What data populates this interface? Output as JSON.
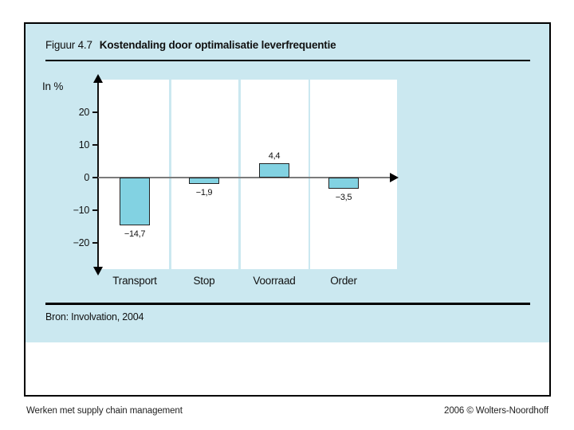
{
  "figure": {
    "label": "Figuur 4.7",
    "title": "Kostendaling door optimalisatie leverfrequentie",
    "source": "Bron: Involvation, 2004"
  },
  "chart_data": {
    "type": "bar",
    "title": "Kostendaling door optimalisatie leverfrequentie",
    "categories": [
      "Transport",
      "Stop",
      "Voorraad",
      "Order"
    ],
    "values": [
      -14.7,
      -1.9,
      4.4,
      -3.5
    ],
    "value_labels": [
      "−14,7",
      "−1,9",
      "4,4",
      "−3,5"
    ],
    "xlabel": "",
    "ylabel": "In %",
    "y_ticks": [
      20,
      10,
      0,
      -10,
      -20
    ],
    "y_tick_labels": [
      "20",
      "10",
      "0",
      "−10",
      "−20"
    ],
    "ylim": [
      -27,
      28
    ],
    "grid": false,
    "bar_color": "#82d2e2",
    "bar_border_color": "#222222"
  },
  "footer": {
    "left": "Werken met supply chain management",
    "right": "2006 © Wolters-Noordhoff"
  },
  "colors": {
    "figure_bg": "#cbe8f0",
    "plot_bg": "#ffffff",
    "x_axis": "#7b7b7b",
    "y_axis": "#111111"
  }
}
